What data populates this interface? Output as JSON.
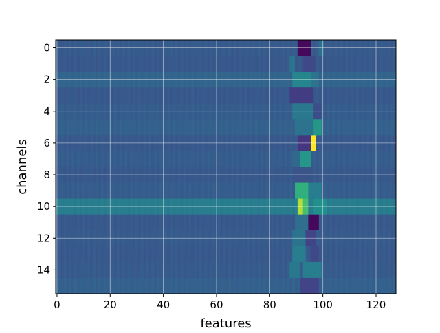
{
  "chart_data": {
    "type": "heatmap",
    "title": "",
    "xlabel": "features",
    "ylabel": "channels",
    "n_cols": 128,
    "n_rows": 16,
    "xlim": [
      -0.5,
      127.5
    ],
    "ylim": [
      15.5,
      -0.5
    ],
    "x_ticks": [
      0,
      20,
      40,
      60,
      80,
      100,
      120
    ],
    "y_ticks": [
      0,
      2,
      4,
      6,
      8,
      10,
      12,
      14
    ],
    "grid": true,
    "colormap": "viridis",
    "value_range": [
      -1,
      1
    ],
    "background_level": -0.3,
    "row_levels": [
      -0.28,
      -0.3,
      -0.18,
      -0.3,
      -0.26,
      -0.22,
      -0.3,
      -0.26,
      -0.3,
      -0.26,
      0.05,
      -0.3,
      -0.28,
      -0.3,
      -0.28,
      -0.22
    ],
    "hotspots": [
      {
        "row": 0,
        "x0": 91,
        "x1": 95,
        "value": -0.95
      },
      {
        "row": 0,
        "x0": 99,
        "x1": 100,
        "value": -0.1
      },
      {
        "row": 1,
        "x0": 88,
        "x1": 89,
        "value": -0.05
      },
      {
        "row": 1,
        "x0": 93,
        "x1": 97,
        "value": -0.45
      },
      {
        "row": 2,
        "x0": 89,
        "x1": 95,
        "value": 0.15
      },
      {
        "row": 2,
        "x0": 96,
        "x1": 98,
        "value": -0.05
      },
      {
        "row": 3,
        "x0": 88,
        "x1": 96,
        "value": -0.55
      },
      {
        "row": 4,
        "x0": 89,
        "x1": 96,
        "value": 0.0
      },
      {
        "row": 4,
        "x0": 97,
        "x1": 99,
        "value": -0.4
      },
      {
        "row": 5,
        "x0": 90,
        "x1": 96,
        "value": -0.05
      },
      {
        "row": 5,
        "x0": 97,
        "x1": 99,
        "value": 0.3
      },
      {
        "row": 6,
        "x0": 91,
        "x1": 95,
        "value": -0.6
      },
      {
        "row": 6,
        "x0": 96,
        "x1": 97,
        "value": 1.0
      },
      {
        "row": 7,
        "x0": 92,
        "x1": 95,
        "value": 0.3
      },
      {
        "row": 7,
        "x0": 89,
        "x1": 91,
        "value": -0.15
      },
      {
        "row": 8,
        "x0": 90,
        "x1": 96,
        "value": -0.35
      },
      {
        "row": 9,
        "x0": 90,
        "x1": 94,
        "value": 0.45
      },
      {
        "row": 9,
        "x0": 95,
        "x1": 99,
        "value": 0.05
      },
      {
        "row": 10,
        "x0": 91,
        "x1": 92,
        "value": 0.85
      },
      {
        "row": 10,
        "x0": 93,
        "x1": 94,
        "value": 0.55
      },
      {
        "row": 10,
        "x0": 97,
        "x1": 101,
        "value": 0.25
      },
      {
        "row": 11,
        "x0": 95,
        "x1": 98,
        "value": -0.95
      },
      {
        "row": 11,
        "x0": 90,
        "x1": 94,
        "value": -0.1
      },
      {
        "row": 12,
        "x0": 89,
        "x1": 93,
        "value": -0.05
      },
      {
        "row": 12,
        "x0": 94,
        "x1": 97,
        "value": -0.5
      },
      {
        "row": 13,
        "x0": 89,
        "x1": 93,
        "value": 0.05
      },
      {
        "row": 13,
        "x0": 96,
        "x1": 98,
        "value": -0.45
      },
      {
        "row": 14,
        "x0": 88,
        "x1": 91,
        "value": 0.0
      },
      {
        "row": 14,
        "x0": 93,
        "x1": 99,
        "value": 0.05
      },
      {
        "row": 15,
        "x0": 92,
        "x1": 98,
        "value": -0.5
      }
    ]
  }
}
